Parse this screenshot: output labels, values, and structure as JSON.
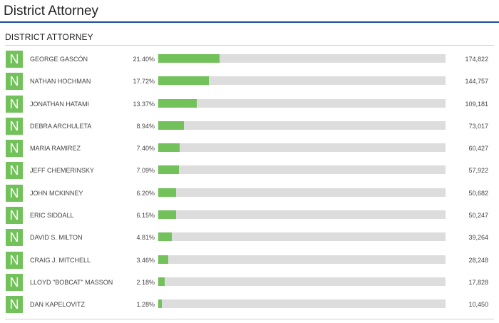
{
  "page": {
    "title": "District Attorney"
  },
  "contest": {
    "title": "DISTRICT ATTORNEY",
    "badge_letter": "N",
    "colors": {
      "accent": "#72c15a",
      "track": "#dddddd",
      "header_rule": "#1f4e9c"
    },
    "candidates": [
      {
        "name": "GEORGE GASCÓN",
        "percent": "21.40%",
        "share": 21.4,
        "votes": "174,822"
      },
      {
        "name": "NATHAN HOCHMAN",
        "percent": "17.72%",
        "share": 17.72,
        "votes": "144,757"
      },
      {
        "name": "JONATHAN HATAMI",
        "percent": "13.37%",
        "share": 13.37,
        "votes": "109,181"
      },
      {
        "name": "DEBRA ARCHULETA",
        "percent": "8.94%",
        "share": 8.94,
        "votes": "73,017"
      },
      {
        "name": "MARIA RAMIREZ",
        "percent": "7.40%",
        "share": 7.4,
        "votes": "60,427"
      },
      {
        "name": "JEFF CHEMERINSKY",
        "percent": "7.09%",
        "share": 7.09,
        "votes": "57,922"
      },
      {
        "name": "JOHN MCKINNEY",
        "percent": "6.20%",
        "share": 6.2,
        "votes": "50,682"
      },
      {
        "name": "ERIC SIDDALL",
        "percent": "6.15%",
        "share": 6.15,
        "votes": "50,247"
      },
      {
        "name": "DAVID S. MILTON",
        "percent": "4.81%",
        "share": 4.81,
        "votes": "39,264"
      },
      {
        "name": "CRAIG J. MITCHELL",
        "percent": "3.46%",
        "share": 3.46,
        "votes": "28,248"
      },
      {
        "name": "LLOYD \"BOBCAT\" MASSON",
        "percent": "2.18%",
        "share": 2.18,
        "votes": "17,828"
      },
      {
        "name": "DAN KAPELOVITZ",
        "percent": "1.28%",
        "share": 1.28,
        "votes": "10,450"
      }
    ]
  }
}
